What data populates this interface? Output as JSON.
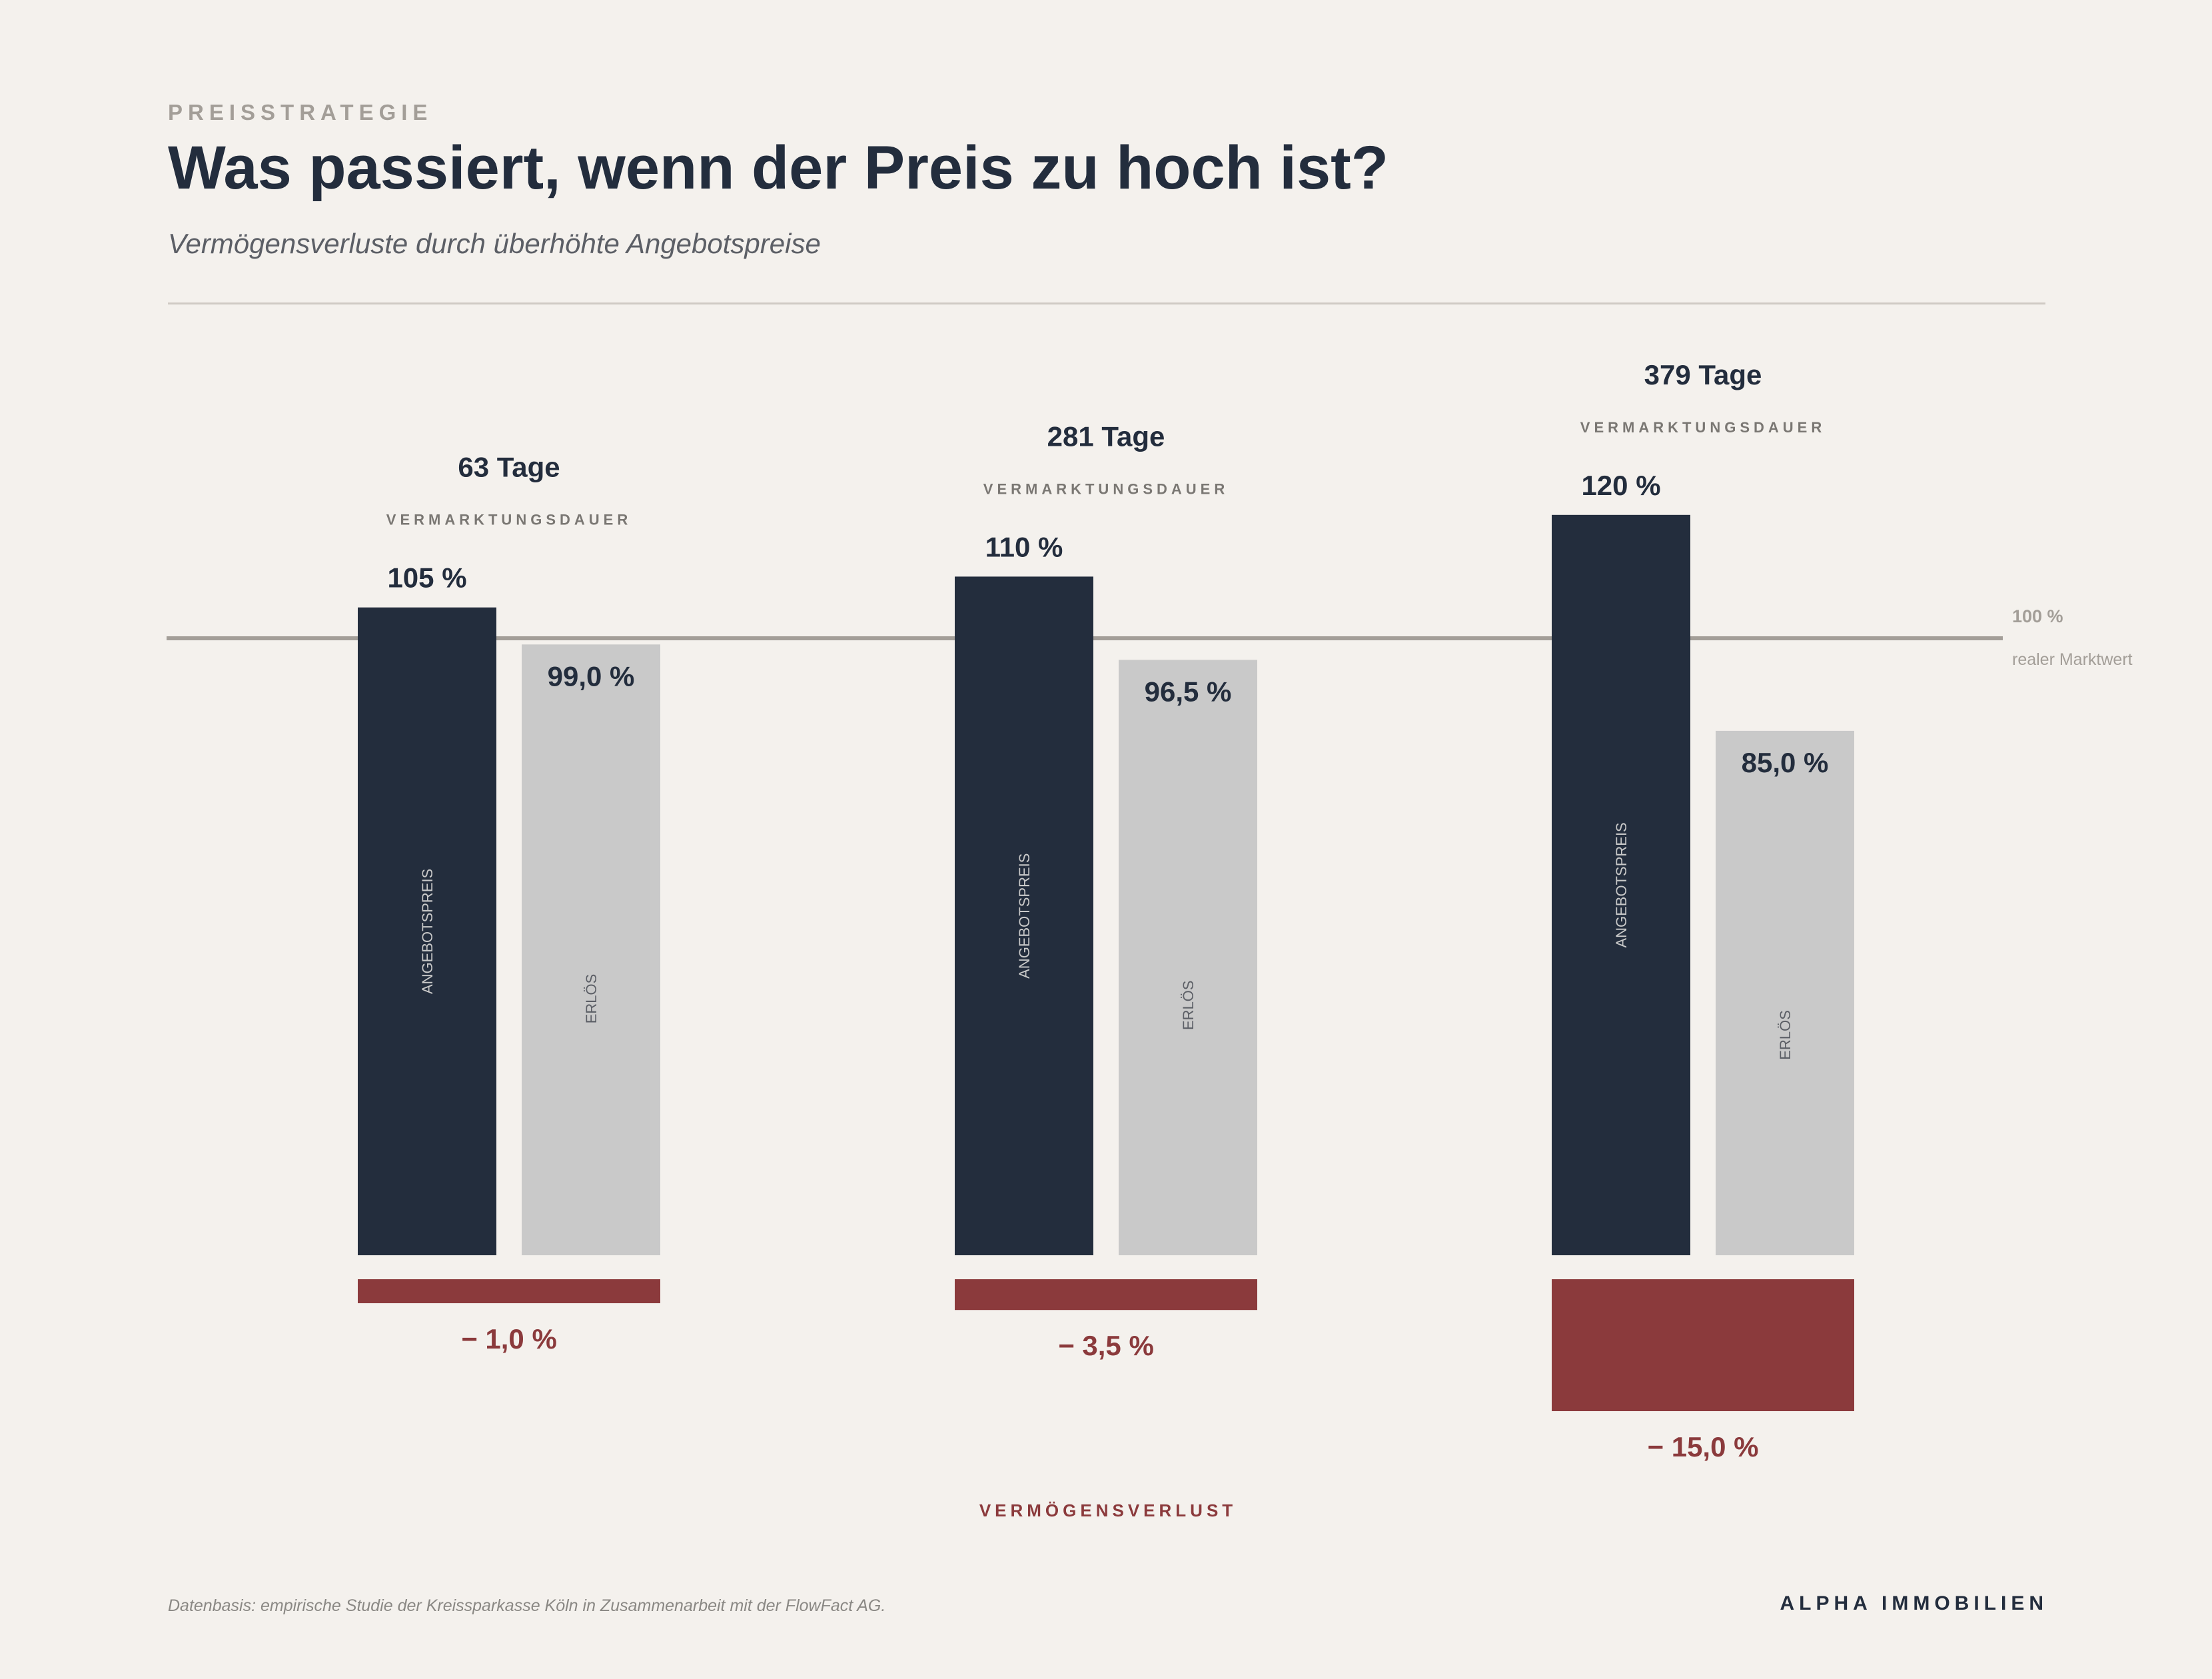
{
  "header": {
    "eyebrow": "PREISSTRATEGIE",
    "title": "Was passiert, wenn der Preis zu hoch ist?",
    "subtitle": "Vermögensverluste durch überhöhte Angebotspreise"
  },
  "footer": {
    "source": "Datenbasis: empirische Studie der Kreissparkasse Köln in Zusammenarbeit mit der FlowFact AG.",
    "brand": "ALPHA IMMOBILIEN"
  },
  "colors": {
    "offer_bar": "#232d3d",
    "revenue_bar": "#c9c9c9",
    "loss_bar": "#8b3a3c",
    "reference_line": "#a39e98",
    "background": "#f4f1ed"
  },
  "chart_data": {
    "type": "bar",
    "series": [
      {
        "name": "ANGEBOTSPREIS",
        "values": [
          105,
          110,
          120
        ],
        "labels": [
          "105 %",
          "110 %",
          "120 %"
        ]
      },
      {
        "name": "ERLÖS",
        "values": [
          99.0,
          96.5,
          85.0
        ],
        "labels": [
          "99,0 %",
          "96,5 %",
          "85,0 %"
        ]
      }
    ],
    "duration": {
      "values": [
        63,
        281,
        379
      ],
      "labels": [
        "63 Tage",
        "281 Tage",
        "379 Tage"
      ],
      "caption": "VERMARKTUNGSDAUER"
    },
    "loss": {
      "values": [
        1.0,
        3.5,
        15.0
      ],
      "labels": [
        "− 1,0 %",
        "− 3,5 %",
        "− 15,0 %"
      ],
      "caption": "VERMÖGENSVERLUST"
    },
    "reference": {
      "value": 100,
      "label": "100 %",
      "caption": "realer Marktwert"
    },
    "ylim": [
      0,
      120
    ],
    "grid": false,
    "legend": "none"
  }
}
